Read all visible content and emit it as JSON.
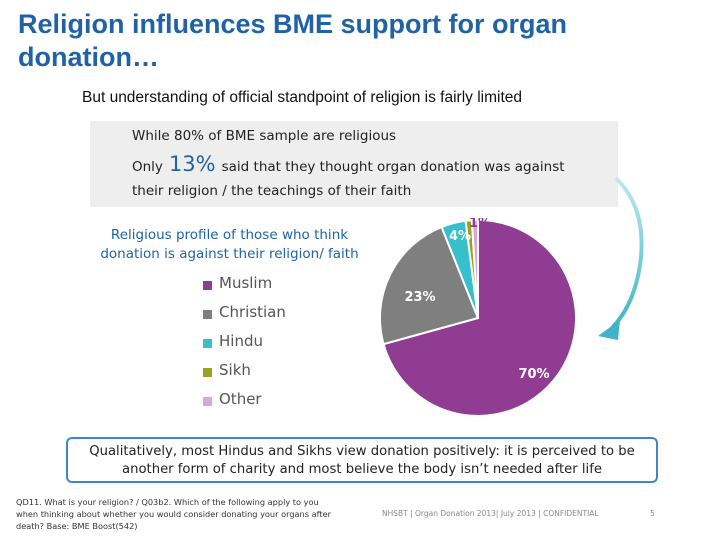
{
  "title": "Religion influences BME support for organ donation…",
  "subtitle": "But understanding of official standpoint of religion is fairly limited",
  "highlight": {
    "line1": "While 80% of BME sample are religious",
    "line2_pre": "Only",
    "line2_pct": "13%",
    "line2_post": "said that they thought organ donation was against",
    "line3": "their religion / the teachings of their faith"
  },
  "profile_label": "Religious profile of those who think donation is against their religion/ faith",
  "chart_data": {
    "type": "pie",
    "title": "",
    "series": [
      {
        "name": "Muslim",
        "value": 70,
        "label": "70%",
        "color": "#8f3c92"
      },
      {
        "name": "Christian",
        "value": 23,
        "label": "23%",
        "color": "#7f7f7f"
      },
      {
        "name": "Hindu",
        "value": 4,
        "label": "4%",
        "color": "#35c0cc"
      },
      {
        "name": "Sikh",
        "value": 1,
        "label": "1%",
        "color": "#9aa21a"
      },
      {
        "name": "Other",
        "value": 1,
        "label": "1%",
        "color": "#d9a7d8"
      }
    ],
    "legend_position": "left"
  },
  "qualitative_note": "Qualitatively, most Hindus and Sikhs view donation positively: it is perceived to be another form of charity and most believe the body isn’t needed after life",
  "footnote": "QD11. What is your religion? / Q03b2. Which of the following apply to you when thinking about whether you would consider donating your organs after death? Base: BME Boost(542)",
  "footer": "NHSBT | Organ Donation 2013| July 2013 | CONFIDENTIAL",
  "page_number": "5",
  "colors": {
    "title": "#1f63a6",
    "arrow": "#3fb4c8",
    "box_border": "#3f86c8"
  }
}
